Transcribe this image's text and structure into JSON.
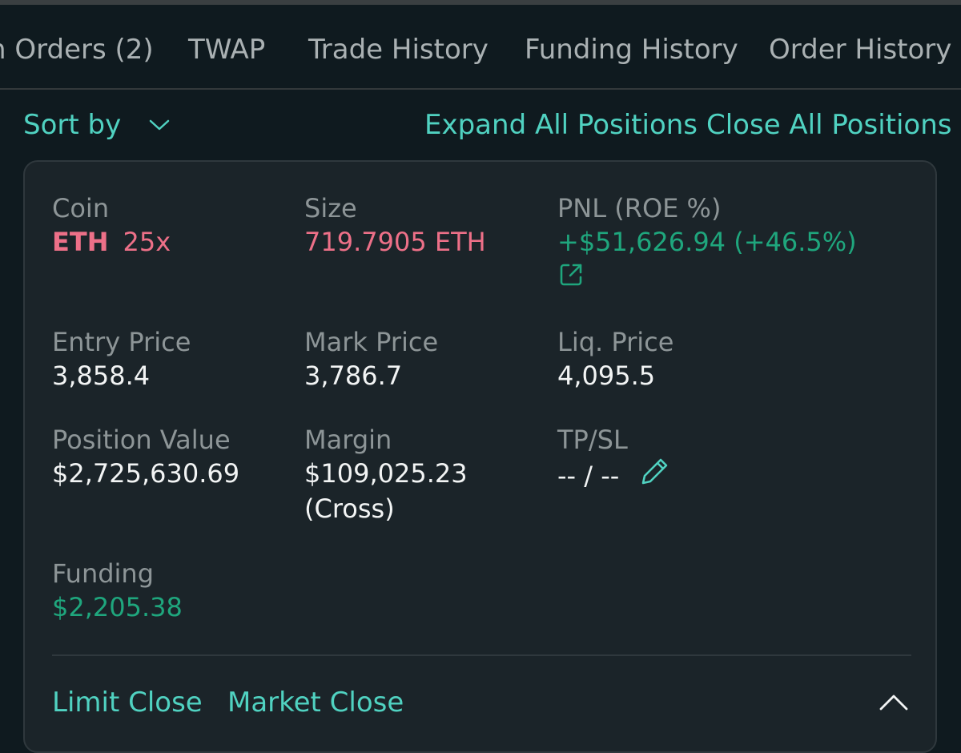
{
  "tabs": [
    {
      "label": "n Orders (2)"
    },
    {
      "label": "TWAP"
    },
    {
      "label": "Trade History"
    },
    {
      "label": "Funding History"
    },
    {
      "label": "Order History"
    }
  ],
  "toolbar": {
    "sort_label": "Sort by",
    "expand_label": "Expand All Positions",
    "close_all_label": "Close All Positions"
  },
  "position": {
    "coin": {
      "label": "Coin",
      "symbol": "ETH",
      "leverage": "25x"
    },
    "size": {
      "label": "Size",
      "value": "719.7905 ETH"
    },
    "pnl": {
      "label": "PNL (ROE %)",
      "value": "+$51,626.94 (+46.5%)"
    },
    "entry_price": {
      "label": "Entry Price",
      "value": "3,858.4"
    },
    "mark_price": {
      "label": "Mark Price",
      "value": "3,786.7"
    },
    "liq_price": {
      "label": "Liq. Price",
      "value": "4,095.5"
    },
    "position_value": {
      "label": "Position Value",
      "value": "$2,725,630.69"
    },
    "margin": {
      "label": "Margin",
      "value": "$109,025.23",
      "mode": "(Cross)"
    },
    "tpsl": {
      "label": "TP/SL",
      "value": "-- / --"
    },
    "funding": {
      "label": "Funding",
      "value": "$2,205.38"
    }
  },
  "actions": {
    "limit_close": "Limit Close",
    "market_close": "Market Close"
  },
  "colors": {
    "accent": "#50d2c1",
    "negative": "#ed7088",
    "positive": "#1fa67d",
    "background": "#0f1a1f",
    "card": "#1b2429"
  },
  "icons": {
    "sort": "chevron-down-icon",
    "share": "external-link-icon",
    "edit": "pencil-icon",
    "collapse": "chevron-up-icon"
  }
}
